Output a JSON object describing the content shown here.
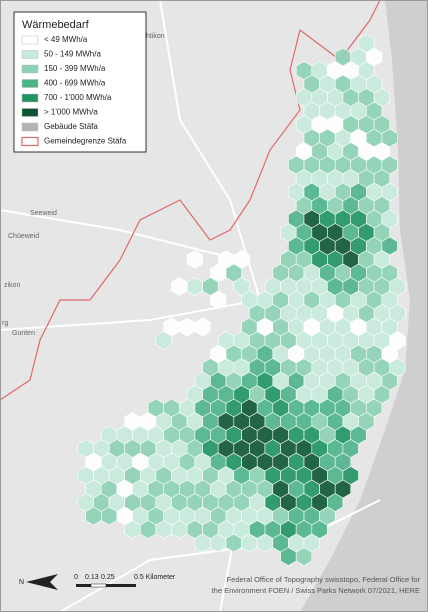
{
  "legend": {
    "title": "Wärmebedarf",
    "items": [
      {
        "label": "< 49 MWh/a",
        "color": "#ffffff",
        "kind": "fill"
      },
      {
        "label": "50 - 149 MWh/a",
        "color": "#c6eadb",
        "kind": "fill"
      },
      {
        "label": "150 - 399 MWh/a",
        "color": "#8cd1b3",
        "kind": "fill"
      },
      {
        "label": "400 - 699 MWh/a",
        "color": "#4db48a",
        "kind": "fill"
      },
      {
        "label": "700 - 1'000 MWh/a",
        "color": "#1f9360",
        "kind": "fill"
      },
      {
        "label": "> 1'000 MWh/a",
        "color": "#0c5532",
        "kind": "fill"
      },
      {
        "label": "Gebäude Stäfa",
        "color": "#b3b3b3",
        "kind": "fill"
      },
      {
        "label": "Gemeindegrenze Stäfa",
        "color": "#e06a6a",
        "kind": "outline"
      }
    ]
  },
  "places": [
    {
      "label": "htikon"
    },
    {
      "label": "Seeweid"
    },
    {
      "label": "Chüeweid"
    },
    {
      "label": "zikon"
    },
    {
      "label": "rg"
    },
    {
      "label": "Gunten"
    }
  ],
  "scale": {
    "labels": [
      "0",
      "0.13",
      "0.25",
      "0.5 Kilometer"
    ]
  },
  "north": "N",
  "attribution": [
    "Federal Office of Topography swisstopo, Federal Office for",
    "the Environment FOEN / Swiss Parks Network 07/2021, HERE"
  ]
}
